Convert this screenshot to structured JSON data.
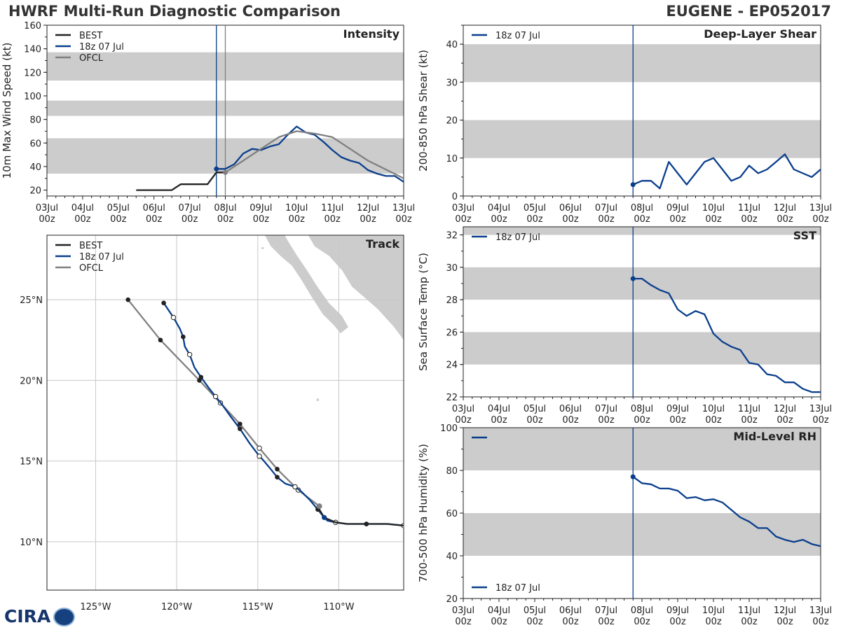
{
  "header": {
    "title_left": "HWRF Multi-Run Diagnostic Comparison",
    "title_right": "EUGENE - EP052017"
  },
  "logo": {
    "text": "CIRA"
  },
  "colors": {
    "best": "#222222",
    "run": "#0a3e8c",
    "ofcl": "#808080",
    "shade": "#cccccc",
    "grid": "#c8c8c8"
  },
  "time_ticks": {
    "days": [
      "03Jul",
      "04Jul",
      "05Jul",
      "06Jul",
      "07Jul",
      "08Jul",
      "09Jul",
      "10Jul",
      "11Jul",
      "12Jul",
      "13Jul"
    ],
    "hour": "00z"
  },
  "chart_data": [
    {
      "id": "intensity",
      "type": "line",
      "title": "Intensity",
      "ylabel": "10m Max Wind Speed (kt)",
      "ylim": [
        15,
        160
      ],
      "yticks": [
        20,
        40,
        60,
        80,
        100,
        120,
        140,
        160
      ],
      "xlim_days": [
        0,
        10
      ],
      "shade_bands": [
        [
          34,
          64
        ],
        [
          83,
          96
        ],
        [
          113,
          137
        ]
      ],
      "vlines_days": [
        {
          "x": 4.75,
          "series": "run"
        },
        {
          "x": 5.0,
          "series": "ofcl"
        }
      ],
      "legend": [
        "BEST",
        "18z 07 Jul",
        "OFCL"
      ],
      "series": [
        {
          "name": "BEST",
          "key": "best",
          "x_days": [
            2.5,
            2.75,
            3.0,
            3.25,
            3.5,
            3.75,
            4.0,
            4.25,
            4.5,
            4.75,
            5.0
          ],
          "values": [
            20,
            20,
            20,
            20,
            20,
            25,
            25,
            25,
            25,
            35,
            35
          ],
          "markers": []
        },
        {
          "name": "18z 07 Jul",
          "key": "run",
          "x_days": [
            4.75,
            5.0,
            5.25,
            5.5,
            5.75,
            6.0,
            6.25,
            6.5,
            6.75,
            7.0,
            7.25,
            7.5,
            7.75,
            8.0,
            8.25,
            8.5,
            8.75,
            9.0,
            9.25,
            9.5,
            9.75,
            10.0
          ],
          "values": [
            38,
            38,
            42,
            51,
            55,
            54,
            57,
            59,
            67,
            74,
            69,
            67,
            61,
            54,
            48,
            45,
            43,
            37,
            34,
            32,
            32,
            27
          ],
          "markers": [
            0
          ]
        },
        {
          "name": "OFCL",
          "key": "ofcl",
          "x_days": [
            5.0,
            5.5,
            6.0,
            6.5,
            7.0,
            7.5,
            8.0,
            8.5,
            9.0,
            10.0
          ],
          "values": [
            35,
            45,
            55,
            65,
            70,
            68,
            65,
            55,
            45,
            30
          ],
          "markers": [
            0
          ]
        }
      ]
    },
    {
      "id": "shear",
      "type": "line",
      "title": "Deep-Layer Shear",
      "ylabel": "200-850 hPa Shear (kt)",
      "ylim": [
        0,
        45
      ],
      "yticks": [
        0,
        10,
        20,
        30,
        40
      ],
      "xlim_days": [
        0,
        10
      ],
      "shade_bands": [
        [
          10,
          20
        ],
        [
          30,
          40
        ]
      ],
      "vlines_days": [
        {
          "x": 4.75,
          "series": "run"
        }
      ],
      "legend": [
        "18z 07 Jul"
      ],
      "series": [
        {
          "name": "18z 07 Jul",
          "key": "run",
          "x_days": [
            4.75,
            5.0,
            5.25,
            5.5,
            5.75,
            6.0,
            6.25,
            6.5,
            6.75,
            7.0,
            7.25,
            7.5,
            7.75,
            8.0,
            8.25,
            8.5,
            8.75,
            9.0,
            9.25,
            9.5,
            9.75,
            10.0
          ],
          "values": [
            3,
            4,
            4,
            2,
            9,
            6,
            3,
            6,
            9,
            10,
            7,
            4,
            5,
            8,
            6,
            7,
            9,
            11,
            7,
            6,
            5,
            7
          ],
          "markers": [
            0
          ]
        }
      ]
    },
    {
      "id": "sst",
      "type": "line",
      "title": "SST",
      "ylabel": "Sea Surface Temp (°C)",
      "ylim": [
        22,
        32.5
      ],
      "yticks": [
        22,
        24,
        26,
        28,
        30,
        32
      ],
      "xlim_days": [
        0,
        10
      ],
      "shade_bands": [
        [
          24,
          26
        ],
        [
          28,
          30
        ],
        [
          32,
          32.5
        ]
      ],
      "vlines_days": [
        {
          "x": 4.75,
          "series": "run"
        }
      ],
      "legend": [
        "18z 07 Jul"
      ],
      "series": [
        {
          "name": "18z 07 Jul",
          "key": "run",
          "x_days": [
            4.75,
            5.0,
            5.25,
            5.5,
            5.75,
            6.0,
            6.25,
            6.5,
            6.75,
            7.0,
            7.25,
            7.5,
            7.75,
            8.0,
            8.25,
            8.5,
            8.75,
            9.0,
            9.25,
            9.5,
            9.75,
            10.0
          ],
          "values": [
            29.3,
            29.3,
            28.9,
            28.6,
            28.4,
            27.4,
            27.0,
            27.3,
            27.1,
            25.9,
            25.4,
            25.1,
            24.9,
            24.1,
            24.0,
            23.4,
            23.3,
            22.9,
            22.9,
            22.5,
            22.3,
            22.3
          ],
          "markers": [
            0
          ]
        }
      ]
    },
    {
      "id": "rh",
      "type": "line",
      "title": "Mid-Level RH",
      "ylabel": "700-500 hPa Humidity (%)",
      "ylim": [
        20,
        100
      ],
      "yticks": [
        20,
        40,
        60,
        80,
        100
      ],
      "xlim_days": [
        0,
        10
      ],
      "shade_bands": [
        [
          40,
          60
        ],
        [
          80,
          100
        ]
      ],
      "vlines_days": [
        {
          "x": 4.75,
          "series": "run"
        }
      ],
      "legend": [
        "18z 07 Jul"
      ],
      "series": [
        {
          "name": "18z 07 Jul",
          "key": "run",
          "x_days": [
            4.75,
            5.0,
            5.25,
            5.5,
            5.75,
            6.0,
            6.25,
            6.5,
            6.75,
            7.0,
            7.25,
            7.5,
            7.75,
            8.0,
            8.25,
            8.5,
            8.75,
            9.0,
            9.25,
            9.5,
            9.75,
            10.0
          ],
          "values": [
            77,
            74,
            73.5,
            71.5,
            71.5,
            70.5,
            67,
            67.5,
            66,
            66.5,
            65,
            61.5,
            58,
            56,
            53,
            53,
            49,
            47.5,
            46.5,
            47.5,
            45.5,
            44.5
          ],
          "markers": [
            0
          ]
        }
      ]
    },
    {
      "id": "track",
      "type": "line",
      "title": "Track",
      "xlabel": "",
      "ylabel": "",
      "xlim": [
        -128,
        -106
      ],
      "ylim": [
        7,
        29
      ],
      "xticks": [
        -125,
        -120,
        -115,
        -110
      ],
      "yticks": [
        10,
        15,
        20,
        25
      ],
      "xtick_labels": [
        "125°W",
        "120°W",
        "115°W",
        "110°W"
      ],
      "ytick_labels": [
        "10°N",
        "15°N",
        "20°N",
        "25°N"
      ],
      "legend": [
        "BEST",
        "18z 07 Jul",
        "OFCL"
      ],
      "series": [
        {
          "name": "BEST",
          "key": "best",
          "lon": [
            -106.0,
            -107.0,
            -108.3,
            -109.5,
            -110.2,
            -110.9,
            -111.2
          ],
          "lat": [
            11.0,
            11.1,
            11.1,
            11.1,
            11.2,
            11.5,
            12.0
          ],
          "filled": [
            0,
            0,
            1,
            0,
            0,
            0,
            0
          ],
          "open": [
            0,
            0,
            0,
            0,
            0,
            0,
            0
          ]
        },
        {
          "name": "18z 07 Jul",
          "key": "run",
          "lon": [
            -106.0,
            -107.0,
            -108.3,
            -109.5,
            -110.2,
            -110.7,
            -110.9,
            -111.3,
            -111.8,
            -112.3,
            -112.7,
            -113.3,
            -113.8,
            -114.2,
            -114.7,
            -114.9,
            -115.5,
            -116.1,
            -116.7,
            -117.2,
            -117.6,
            -118.0,
            -118.5,
            -118.9,
            -119.2,
            -119.5,
            -119.6,
            -119.8,
            -120.2,
            -120.8
          ],
          "lat": [
            11.0,
            11.1,
            11.1,
            11.1,
            11.2,
            11.3,
            11.5,
            12.0,
            12.6,
            13.1,
            13.4,
            13.6,
            14.0,
            14.5,
            15.1,
            15.3,
            16.1,
            17.0,
            17.8,
            18.5,
            19.0,
            19.5,
            20.2,
            20.8,
            21.6,
            22.1,
            22.7,
            23.2,
            23.9,
            24.8
          ],
          "filled_idx": [
            2,
            6,
            7,
            12,
            17,
            22,
            26,
            29
          ],
          "open_idx": [
            0,
            4,
            10,
            15,
            20,
            24,
            28
          ]
        },
        {
          "name": "OFCL",
          "key": "ofcl",
          "lon": [
            -111.2,
            -112.5,
            -113.8,
            -114.9,
            -116.1,
            -117.3,
            -118.6,
            -121.0,
            -123.0
          ],
          "lat": [
            12.2,
            13.2,
            14.5,
            15.8,
            17.3,
            18.6,
            20.0,
            22.5,
            25.0
          ],
          "filled_idx": [
            2,
            4,
            6,
            7,
            8
          ],
          "open_idx": [
            1,
            3,
            5
          ]
        }
      ]
    }
  ]
}
